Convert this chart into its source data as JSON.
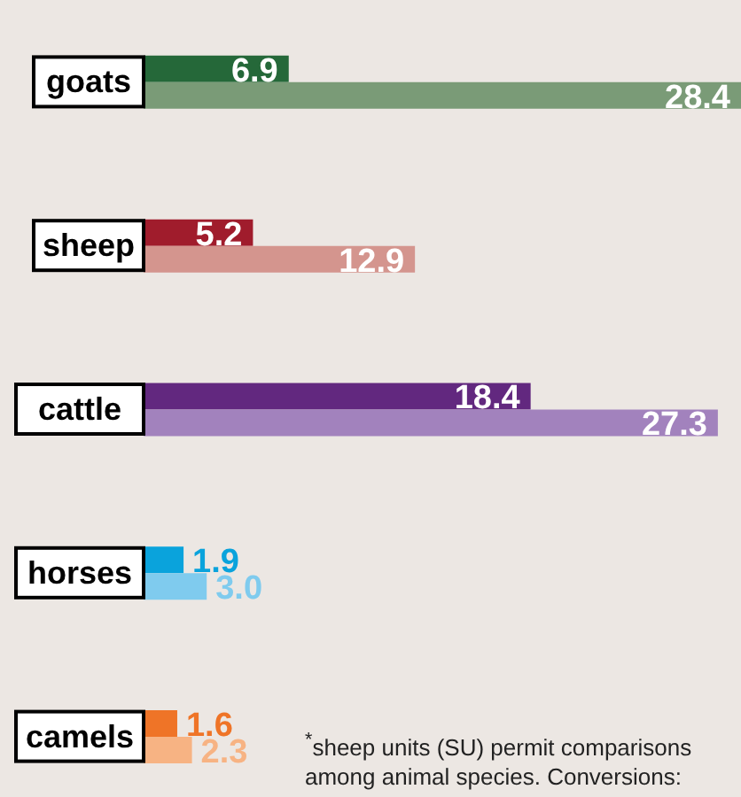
{
  "chart_data": {
    "type": "bar",
    "orientation": "horizontal",
    "categories": [
      "goats",
      "sheep",
      "cattle",
      "horses",
      "camels"
    ],
    "series": [
      {
        "colors": [
          "#256839",
          "#a01c2c",
          "#62287f",
          "#0aa3dc",
          "#ef7427"
        ],
        "values": [
          6.9,
          5.2,
          18.4,
          1.9,
          1.6
        ],
        "value_labels": [
          "6.9",
          "5.2",
          "18.4",
          "1.9",
          "1.6"
        ]
      },
      {
        "colors": [
          "#7a9b77",
          "#d4958e",
          "#a282bd",
          "#7fcbee",
          "#f7b383"
        ],
        "values": [
          28.4,
          12.9,
          27.3,
          3.0,
          2.3
        ],
        "value_labels": [
          "28.4",
          "12.9",
          "27.3",
          "3.0",
          "2.3"
        ]
      }
    ],
    "xlim": [
      0,
      28.4
    ],
    "tick_labels": "y",
    "annotations": [
      "$^{*}$sheep units (SU) permit comparisons among animal species. Conversions:"
    ]
  }
}
